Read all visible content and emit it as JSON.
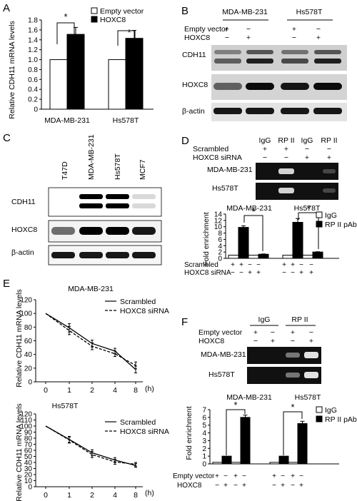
{
  "panel_labels": {
    "A": "A",
    "B": "B",
    "C": "C",
    "D": "D",
    "E": "E",
    "F": "F"
  },
  "legend": {
    "empty_vector": "Empty vector",
    "hoxc8": "HOXC8",
    "igg": "IgG",
    "rp2pab": "RP II pAb",
    "scrambled": "Scrambled",
    "hoxc8_sirna": "HOXC8 siRNA"
  },
  "lines": {
    "mda": "MDA-MB-231",
    "hs": "Hs578T",
    "t47d": "T47D",
    "mcf7": "MCF7"
  },
  "genes": {
    "cdh11": "CDH11",
    "hoxc8": "HOXC8",
    "actin": "β-actin"
  },
  "chip": {
    "igg": "IgG",
    "rp2": "RP II",
    "scrambled": "Scrambled",
    "hoxc8_sirna": "HOXC8 siRNA",
    "empty_vector": "Empty vector",
    "hoxc8": "HOXC8"
  },
  "signs": {
    "plus": "+",
    "minus": "−"
  },
  "star": "*",
  "chart_data": [
    {
      "panel": "A",
      "type": "bar",
      "ylabel": "Relative CDH11 mRNA levels",
      "ylim": [
        0,
        1.8
      ],
      "yticks": [
        "0",
        "0.2",
        "0.4",
        "0.6",
        "0.8",
        "1.0",
        "1.2",
        "1.4",
        "1.6",
        "1.8"
      ],
      "categories": [
        "MDA-MB-231",
        "Hs578T"
      ],
      "series": [
        {
          "name": "Empty vector",
          "values": [
            1.0,
            1.0
          ],
          "errors": [
            0,
            0
          ],
          "color": "#ffffff"
        },
        {
          "name": "HOXC8",
          "values": [
            1.51,
            1.43
          ],
          "errors": [
            0.14,
            0.16
          ],
          "color": "#000000"
        }
      ]
    },
    {
      "panel": "D",
      "type": "bar",
      "ylabel": "Fold enrichment",
      "ylim": [
        0,
        14
      ],
      "yticks": [
        "0",
        "2",
        "4",
        "6",
        "8",
        "10",
        "12",
        "14"
      ],
      "groups": [
        "MDA-MB-231",
        "Hs578T"
      ],
      "series": [
        {
          "name": "IgG",
          "values": [
            1.0,
            1.0,
            1.0,
            1.0
          ],
          "errors": [
            0,
            0,
            0,
            0
          ],
          "color": "#ffffff"
        },
        {
          "name": "RP II pAb",
          "values": [
            9.8,
            1.3,
            11.4,
            2.0
          ],
          "errors": [
            0.5,
            0.1,
            1.2,
            0.1
          ],
          "color": "#000000"
        }
      ],
      "scrambled": [
        "+",
        "+",
        "−",
        "−",
        "+",
        "+",
        "−",
        "−"
      ],
      "hoxc8_sirna": [
        "−",
        "−",
        "+",
        "+",
        "−",
        "−",
        "+",
        "+"
      ]
    },
    {
      "panel": "E-top",
      "type": "line",
      "title": "MDA-MB-231",
      "ylabel": "Relative CDH11 mRNA levels",
      "ylim": [
        0,
        120
      ],
      "xunit": "(h)",
      "yticks": [
        "0",
        "20",
        "40",
        "60",
        "80",
        "100",
        "120"
      ],
      "x": [
        "0",
        "1",
        "2",
        "4",
        "8"
      ],
      "series": [
        {
          "name": "Scrambled",
          "values": [
            100,
            79,
            56,
            45,
            18
          ],
          "errors": [
            0,
            6,
            5,
            4,
            5
          ],
          "dash": "solid"
        },
        {
          "name": "HOXC8 siRNA",
          "values": [
            100,
            75,
            52,
            41,
            24
          ],
          "errors": [
            0,
            6,
            5,
            4,
            5
          ],
          "dash": "dashed"
        }
      ]
    },
    {
      "panel": "E-bottom",
      "type": "line",
      "title": "Hs578T",
      "ylabel": "Relative CDH11 mRNA levels",
      "ylim": [
        0,
        120
      ],
      "xunit": "(h)",
      "yticks": [
        "0",
        "10",
        "20",
        "30",
        "40",
        "50",
        "60",
        "70",
        "80",
        "90",
        "100",
        "110",
        "120"
      ],
      "x": [
        "0",
        "1",
        "2",
        "4",
        "8"
      ],
      "series": [
        {
          "name": "Scrambled",
          "values": [
            100,
            78,
            56,
            44,
            35
          ],
          "errors": [
            0,
            5,
            5,
            4,
            3
          ],
          "dash": "solid"
        },
        {
          "name": "HOXC8 siRNA",
          "values": [
            100,
            77,
            53,
            41,
            37
          ],
          "errors": [
            0,
            5,
            5,
            4,
            3
          ],
          "dash": "dashed"
        }
      ]
    },
    {
      "panel": "F",
      "type": "bar",
      "ylabel": "Fold enrichment",
      "ylim": [
        0,
        7
      ],
      "yticks": [
        "0",
        "1",
        "2",
        "3",
        "4",
        "5",
        "6",
        "7"
      ],
      "groups": [
        "MDA-MB-231",
        "Hs578T"
      ],
      "series": [
        {
          "name": "IgG",
          "values": [
            0.2,
            0.2,
            0.2,
            0.2
          ],
          "errors": [
            0,
            0,
            0,
            0
          ],
          "color": "#ffffff"
        },
        {
          "name": "RP II pAb",
          "values": [
            1.0,
            6.0,
            1.0,
            5.2
          ],
          "errors": [
            0,
            0.3,
            0,
            0.3
          ],
          "color": "#000000"
        }
      ],
      "empty_vector": [
        "+",
        "−",
        "+",
        "−",
        "+",
        "−",
        "+",
        "−"
      ],
      "hoxc8": [
        "−",
        "+",
        "−",
        "+",
        "−",
        "+",
        "−",
        "+"
      ]
    }
  ]
}
